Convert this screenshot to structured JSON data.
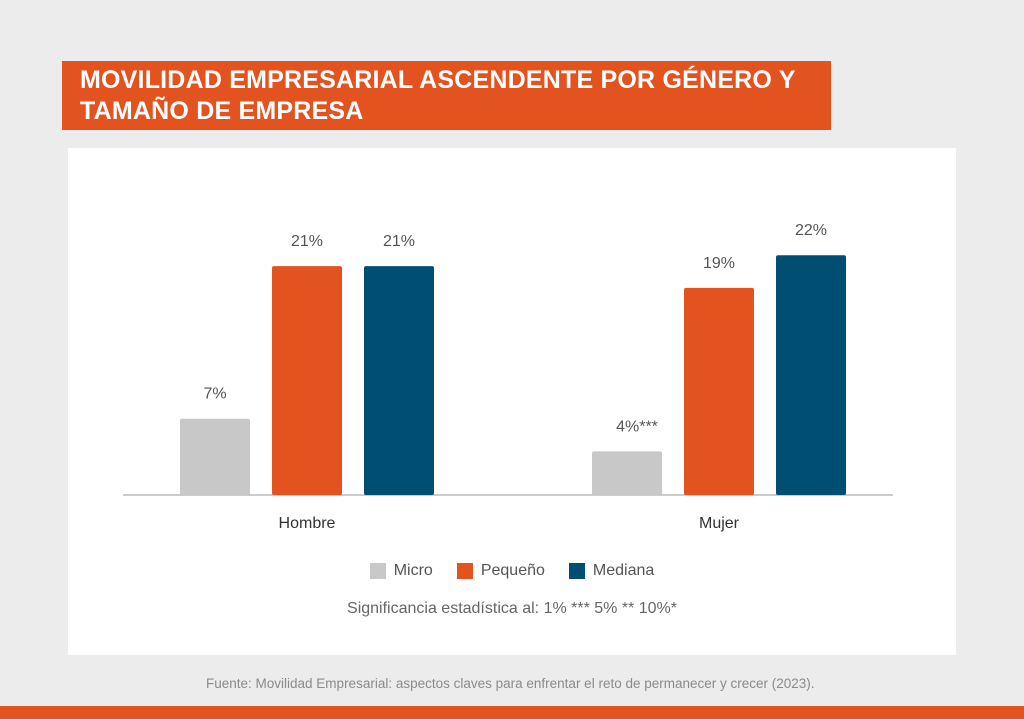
{
  "title": "MOVILIDAD EMPRESARIAL ASCENDENTE POR GÉNERO Y TAMAÑO DE EMPRESA",
  "note": "Significancia estadística al: 1% *** 5% ** 10%*",
  "source": "Fuente:  Movilidad Empresarial: aspectos claves para enfrentar el reto de permanecer y crecer (2023).",
  "colors": {
    "accent": "#e2531f",
    "micro": "#c8c8c8",
    "pequeno": "#e2531f",
    "mediana": "#004e72"
  },
  "chart_data": {
    "type": "bar",
    "title": "MOVILIDAD EMPRESARIAL ASCENDENTE POR GÉNERO Y TAMAÑO DE EMPRESA",
    "categories": [
      "Hombre",
      "Mujer"
    ],
    "series": [
      {
        "name": "Micro",
        "color": "#c8c8c8",
        "values": [
          7,
          4
        ],
        "labels": [
          "7%",
          "4%***"
        ]
      },
      {
        "name": "Pequeño",
        "color": "#e2531f",
        "values": [
          21,
          19
        ],
        "labels": [
          "21%",
          "19%"
        ]
      },
      {
        "name": "Mediana",
        "color": "#004e72",
        "values": [
          21,
          22
        ],
        "labels": [
          "21%",
          "22%"
        ]
      }
    ],
    "ylim": [
      0,
      25
    ],
    "unit": "%",
    "xlabel": "",
    "ylabel": "",
    "grid": false,
    "legend": "bottom-center"
  }
}
